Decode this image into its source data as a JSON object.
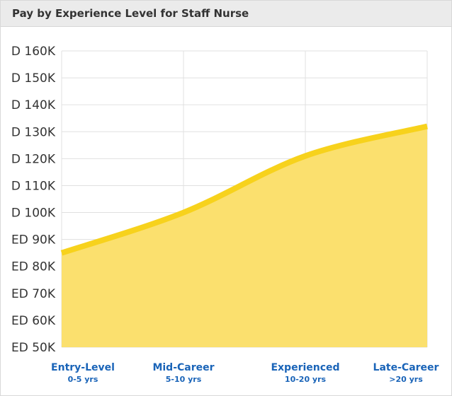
{
  "header": {
    "title": "Pay by Experience Level for Staff Nurse"
  },
  "colors": {
    "area_fill": "#fbe06e",
    "line": "#f7d21c",
    "grid": "#e0e0e0",
    "category_label": "#1a64b8"
  },
  "chart_data": {
    "type": "area",
    "categories": [
      "Entry-Level",
      "Mid-Career",
      "Experienced",
      "Late-Career"
    ],
    "category_sublabels": [
      "0-5 yrs",
      "5-10 yrs",
      "10-20 yrs",
      ">20 yrs"
    ],
    "values": [
      85000,
      100000,
      121000,
      132000
    ],
    "ylim": [
      50000,
      160000
    ],
    "yticks": [
      50000,
      60000,
      70000,
      80000,
      90000,
      100000,
      110000,
      120000,
      130000,
      140000,
      150000,
      160000
    ],
    "ytick_labels": [
      "ED 50K",
      "ED 60K",
      "ED 70K",
      "ED 80K",
      "ED 90K",
      "D 100K",
      "D 110K",
      "D 120K",
      "D 130K",
      "D 140K",
      "D 150K",
      "D 160K"
    ],
    "grid": true,
    "legend": "none"
  }
}
